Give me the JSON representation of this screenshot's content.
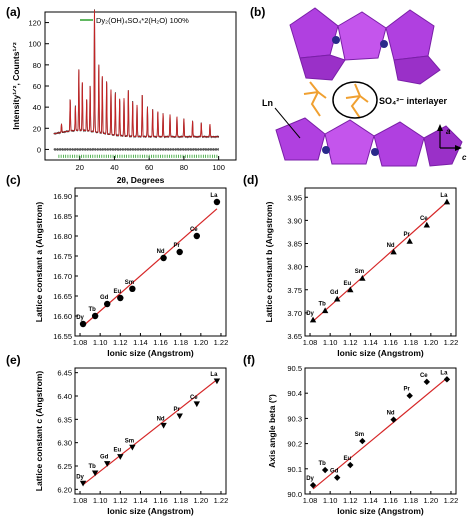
{
  "colors": {
    "fit": "#d62728",
    "obs": "#111111",
    "diff": "#555555",
    "bragg": "#2ca02c",
    "polyhedra": "#b040e0",
    "sulfate": "#f0a030",
    "axis": "#000000"
  },
  "structure": {
    "label": "(b)",
    "sulfate_label": "SO₄²⁻ interlayer",
    "ln_label": "Ln",
    "axis_a": "a",
    "axis_c": "c"
  },
  "chart_data": [
    {
      "id": "a",
      "type": "line",
      "label": "(a)",
      "xlabel": "2θ, Degrees",
      "ylabel": "Intensity¹ᐟ², Counts¹ᐟ²",
      "legend": "Dy₂(OH)₄SO₄*2(H₂O) 100%",
      "xlim": [
        0,
        110
      ],
      "ylim": [
        -10,
        130
      ],
      "xticks": [
        "20",
        "40",
        "60",
        "80",
        "100"
      ],
      "yticks": [
        "0",
        "20",
        "40",
        "60",
        "80",
        "100",
        "120"
      ],
      "peaks": [
        {
          "x": 9.5,
          "y": 20
        },
        {
          "x": 14.5,
          "y": 42
        },
        {
          "x": 17.5,
          "y": 35
        },
        {
          "x": 19.5,
          "y": 70
        },
        {
          "x": 21.5,
          "y": 58
        },
        {
          "x": 24,
          "y": 42
        },
        {
          "x": 26,
          "y": 55
        },
        {
          "x": 28.5,
          "y": 128
        },
        {
          "x": 31,
          "y": 76
        },
        {
          "x": 33,
          "y": 66
        },
        {
          "x": 35.5,
          "y": 62
        },
        {
          "x": 38,
          "y": 55
        },
        {
          "x": 40.5,
          "y": 52
        },
        {
          "x": 43,
          "y": 47
        },
        {
          "x": 45.5,
          "y": 48
        },
        {
          "x": 48,
          "y": 56
        },
        {
          "x": 50.5,
          "y": 45
        },
        {
          "x": 53,
          "y": 42
        },
        {
          "x": 56,
          "y": 52
        },
        {
          "x": 59,
          "y": 40
        },
        {
          "x": 62,
          "y": 38
        },
        {
          "x": 65,
          "y": 36
        },
        {
          "x": 68,
          "y": 34
        },
        {
          "x": 72,
          "y": 33
        },
        {
          "x": 76,
          "y": 31
        },
        {
          "x": 80,
          "y": 29
        },
        {
          "x": 85,
          "y": 27
        },
        {
          "x": 90,
          "y": 25
        },
        {
          "x": 95,
          "y": 24
        }
      ]
    },
    {
      "id": "c",
      "type": "scatter",
      "label": "(c)",
      "xlabel": "Ionic size (Angstrom)",
      "ylabel": "Lattice constant a (Angstrom)",
      "xlim": [
        1.075,
        1.225
      ],
      "ylim": [
        16.55,
        16.92
      ],
      "xticks": [
        1.08,
        1.1,
        1.12,
        1.14,
        1.16,
        1.18,
        1.2,
        1.22
      ],
      "yticks": [
        16.55,
        16.6,
        16.65,
        16.7,
        16.75,
        16.8,
        16.85,
        16.9
      ],
      "marker": "circle",
      "fit": {
        "x": [
          1.083,
          1.216
        ],
        "y": [
          16.575,
          16.868
        ]
      },
      "points": [
        {
          "label": "Dy",
          "x": 1.083,
          "y": 16.58
        },
        {
          "label": "Tb",
          "x": 1.095,
          "y": 16.6
        },
        {
          "label": "Gd",
          "x": 1.107,
          "y": 16.63
        },
        {
          "label": "Eu",
          "x": 1.12,
          "y": 16.645
        },
        {
          "label": "Sm",
          "x": 1.132,
          "y": 16.668
        },
        {
          "label": "Nd",
          "x": 1.163,
          "y": 16.745
        },
        {
          "label": "Pr",
          "x": 1.179,
          "y": 16.76
        },
        {
          "label": "Ce",
          "x": 1.196,
          "y": 16.8
        },
        {
          "label": "La",
          "x": 1.216,
          "y": 16.885
        }
      ]
    },
    {
      "id": "d",
      "type": "scatter",
      "label": "(d)",
      "xlabel": "Ionic size (Angstrom)",
      "ylabel": "Lattice constant b (Angstrom)",
      "xlim": [
        1.075,
        1.225
      ],
      "ylim": [
        3.65,
        3.97
      ],
      "xticks": [
        1.08,
        1.1,
        1.12,
        1.14,
        1.16,
        1.18,
        1.2,
        1.22
      ],
      "yticks": [
        3.65,
        3.7,
        3.75,
        3.8,
        3.85,
        3.9,
        3.95
      ],
      "marker": "triangle-up",
      "fit": {
        "x": [
          1.083,
          1.216
        ],
        "y": [
          3.682,
          3.94
        ]
      },
      "points": [
        {
          "label": "Dy",
          "x": 1.083,
          "y": 3.685
        },
        {
          "label": "Tb",
          "x": 1.095,
          "y": 3.705
        },
        {
          "label": "Gd",
          "x": 1.107,
          "y": 3.73
        },
        {
          "label": "Eu",
          "x": 1.12,
          "y": 3.75
        },
        {
          "label": "Sm",
          "x": 1.132,
          "y": 3.775
        },
        {
          "label": "Nd",
          "x": 1.163,
          "y": 3.832
        },
        {
          "label": "Pr",
          "x": 1.179,
          "y": 3.855
        },
        {
          "label": "Ce",
          "x": 1.196,
          "y": 3.89
        },
        {
          "label": "La",
          "x": 1.216,
          "y": 3.94
        }
      ]
    },
    {
      "id": "e",
      "type": "scatter",
      "label": "(e)",
      "xlabel": "Ionic size (Angstrom)",
      "ylabel": "Lattice constant c (Angstrom)",
      "xlim": [
        1.075,
        1.225
      ],
      "ylim": [
        6.19,
        6.46
      ],
      "xticks": [
        1.08,
        1.1,
        1.12,
        1.14,
        1.16,
        1.18,
        1.2,
        1.22
      ],
      "yticks": [
        6.2,
        6.25,
        6.3,
        6.35,
        6.4,
        6.45
      ],
      "marker": "triangle-down",
      "fit": {
        "x": [
          1.083,
          1.216
        ],
        "y": [
          6.21,
          6.435
        ]
      },
      "points": [
        {
          "label": "Dy",
          "x": 1.083,
          "y": 6.213
        },
        {
          "label": "Tb",
          "x": 1.095,
          "y": 6.235
        },
        {
          "label": "Gd",
          "x": 1.107,
          "y": 6.255
        },
        {
          "label": "Eu",
          "x": 1.12,
          "y": 6.27
        },
        {
          "label": "Sm",
          "x": 1.132,
          "y": 6.29
        },
        {
          "label": "Nd",
          "x": 1.163,
          "y": 6.337
        },
        {
          "label": "Pr",
          "x": 1.179,
          "y": 6.357
        },
        {
          "label": "Ce",
          "x": 1.196,
          "y": 6.383
        },
        {
          "label": "La",
          "x": 1.216,
          "y": 6.432
        }
      ]
    },
    {
      "id": "f",
      "type": "scatter",
      "label": "(f)",
      "xlabel": "Ionic size (Angstrom)",
      "ylabel": "Axis angle beta (°)",
      "xlim": [
        1.075,
        1.225
      ],
      "ylim": [
        90.0,
        90.5
      ],
      "xticks": [
        1.08,
        1.1,
        1.12,
        1.14,
        1.16,
        1.18,
        1.2,
        1.22
      ],
      "yticks": [
        90.0,
        90.1,
        90.2,
        90.3,
        90.4,
        90.5
      ],
      "marker": "diamond",
      "fit": {
        "x": [
          1.083,
          1.216
        ],
        "y": [
          90.02,
          90.46
        ]
      },
      "points": [
        {
          "label": "Dy",
          "x": 1.083,
          "y": 90.035
        },
        {
          "label": "Tb",
          "x": 1.095,
          "y": 90.095
        },
        {
          "label": "Gd",
          "x": 1.107,
          "y": 90.065
        },
        {
          "label": "Eu",
          "x": 1.12,
          "y": 90.115
        },
        {
          "label": "Sm",
          "x": 1.132,
          "y": 90.21
        },
        {
          "label": "Nd",
          "x": 1.163,
          "y": 90.295
        },
        {
          "label": "Pr",
          "x": 1.179,
          "y": 90.39
        },
        {
          "label": "Ce",
          "x": 1.196,
          "y": 90.445
        },
        {
          "label": "La",
          "x": 1.216,
          "y": 90.455
        }
      ]
    }
  ]
}
